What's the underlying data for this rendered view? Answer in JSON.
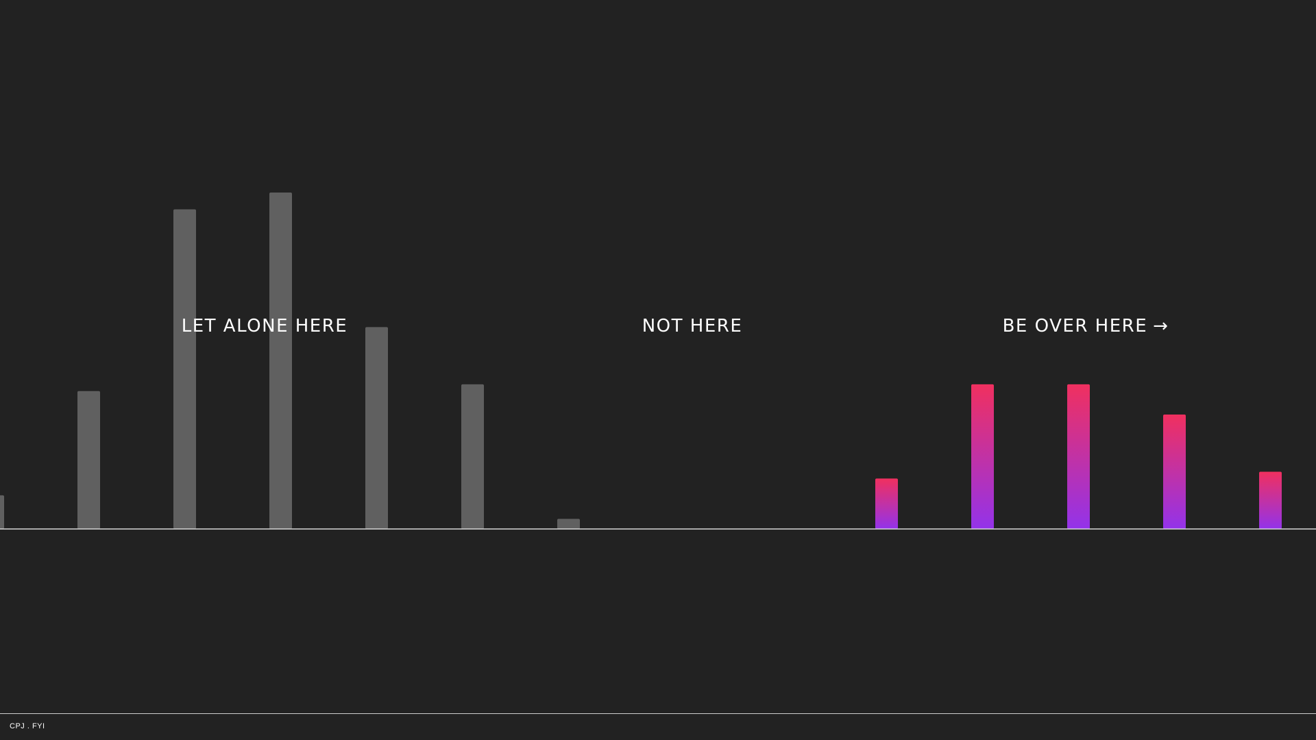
{
  "labels": {
    "left": "LET ALONE HERE",
    "middle": "NOT HERE",
    "right": "BE OVER HERE",
    "right_arrow": "→"
  },
  "footer": {
    "brand": "CPJ . FYI"
  },
  "colors": {
    "background": "#222222",
    "gray_bar": "#606060",
    "gradient_top": "#f0305f",
    "gradient_bottom": "#9333ea",
    "baseline": "#d8d8d8"
  },
  "chart_data": {
    "type": "bar",
    "ylim": [
      0,
      100
    ],
    "series": [
      {
        "values": [
          10,
          41,
          95,
          100,
          60,
          43,
          3,
          0,
          0
        ]
      },
      {
        "values": [
          0,
          0,
          0,
          0,
          0,
          0,
          0,
          0,
          0,
          15,
          43,
          43,
          34,
          17
        ]
      }
    ]
  }
}
